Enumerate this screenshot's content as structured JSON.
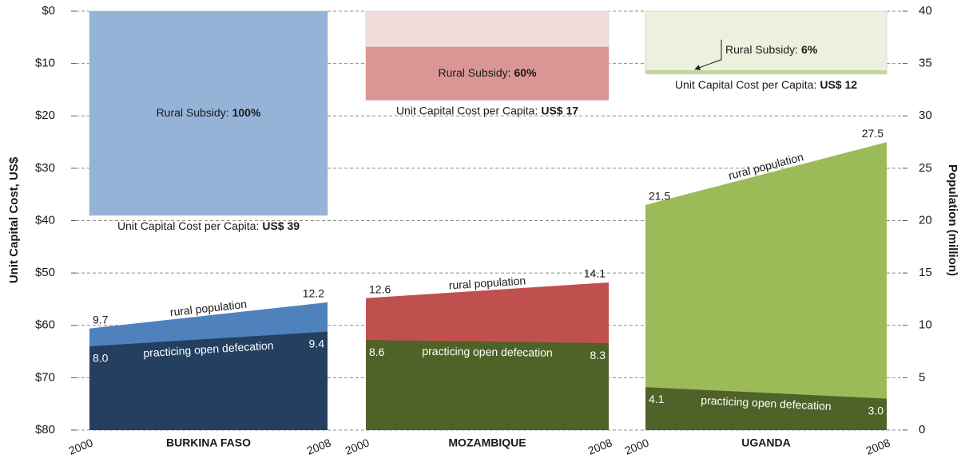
{
  "chart_data": {
    "type": "composite",
    "ylabel": "Unit Capital Cost, US$",
    "y2label": "Population (million)",
    "ylim": [
      0,
      80
    ],
    "yticks": [
      {
        "value": 0,
        "label": "$0"
      },
      {
        "value": 10,
        "label": "$10"
      },
      {
        "value": 20,
        "label": "$20"
      },
      {
        "value": 30,
        "label": "$30"
      },
      {
        "value": 40,
        "label": "$40"
      },
      {
        "value": 50,
        "label": "$50"
      },
      {
        "value": 60,
        "label": "$60"
      },
      {
        "value": 70,
        "label": "$70"
      },
      {
        "value": 80,
        "label": "$80"
      }
    ],
    "y2lim": [
      0,
      40
    ],
    "y2ticks": [
      0,
      5,
      10,
      15,
      20,
      25,
      30,
      35,
      40
    ],
    "grid": true,
    "panels": [
      {
        "name": "BURKINA FASO",
        "categories": [
          "2000",
          "2008"
        ],
        "cost_text": "Unit Capital Cost per Capita:",
        "cost": 39,
        "cost_label": "US$ 39",
        "subsidy_text": "Rural Subsidy:",
        "subsidy": 100,
        "subsidy_label": "100%",
        "box_color": "#dce6f2",
        "subsidy_color": "#95b3d7",
        "series": [
          {
            "name": "rural population",
            "color": "#4f81bd",
            "axis": "y2",
            "values": [
              9.7,
              12.2
            ],
            "value_labels": [
              "9.7",
              "12.2"
            ]
          },
          {
            "name": "practicing open defecation",
            "color": "#243f60",
            "axis": "y2",
            "values": [
              8.0,
              9.4
            ],
            "value_labels": [
              "8.0",
              "9.4"
            ]
          }
        ]
      },
      {
        "name": "MOZAMBIQUE",
        "categories": [
          "2000",
          "2008"
        ],
        "cost_text": "Unit Capital Cost per Capita:",
        "cost": 17,
        "cost_label": "US$ 17",
        "subsidy_text": "Rural Subsidy:",
        "subsidy": 60,
        "subsidy_label": "60%",
        "box_color": "#f2dcdb",
        "subsidy_color": "#d99694",
        "series": [
          {
            "name": "rural population",
            "color": "#c0504d",
            "axis": "y2",
            "values": [
              12.6,
              14.1
            ],
            "value_labels": [
              "12.6",
              "14.1"
            ]
          },
          {
            "name": "practicing open defecation",
            "color": "#4f6228",
            "axis": "y2",
            "values": [
              8.6,
              8.3
            ],
            "value_labels": [
              "8.6",
              "8.3"
            ]
          }
        ]
      },
      {
        "name": "UGANDA",
        "categories": [
          "2000",
          "2008"
        ],
        "cost_text": "Unit Capital Cost per Capita:",
        "cost": 12,
        "cost_label": "US$ 12",
        "subsidy_text": "Rural Subsidy:",
        "subsidy": 6,
        "subsidy_label": "6%",
        "box_color": "#ebf1de",
        "subsidy_color": "#c3d69b",
        "series": [
          {
            "name": "rural population",
            "color": "#9bbb59",
            "axis": "y2",
            "values": [
              21.5,
              27.5
            ],
            "value_labels": [
              "21.5",
              "27.5"
            ]
          },
          {
            "name": "practicing open defecation",
            "color": "#4f6228",
            "axis": "y2",
            "values": [
              4.1,
              3.0
            ],
            "value_labels": [
              "4.1",
              "3.0"
            ]
          }
        ]
      }
    ]
  }
}
